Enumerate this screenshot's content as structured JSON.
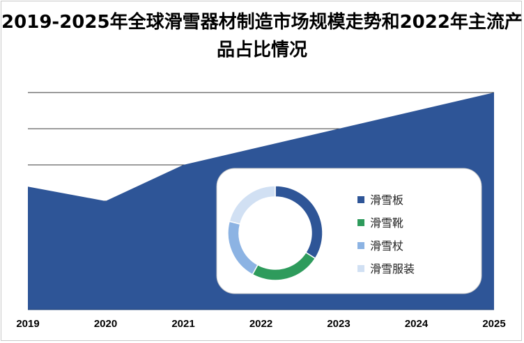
{
  "chart_data": [
    {
      "type": "area",
      "title": "2019-2025年全球滑雪器材制造市场规模走势和2022年主流产品占比情况",
      "categories": [
        "2019",
        "2020",
        "2021",
        "2022",
        "2023",
        "2024",
        "2025"
      ],
      "values": [
        3.4,
        3.0,
        4.0,
        4.5,
        5.0,
        5.5,
        6.0
      ],
      "ylim": [
        0,
        6
      ],
      "ylabel": "",
      "xlabel": "",
      "grid": true,
      "color": "#2e5597"
    },
    {
      "type": "pie",
      "style": "donut",
      "labels": [
        "滑雪板",
        "滑雪靴",
        "滑雪杖",
        "滑雪服装"
      ],
      "values": [
        34,
        24,
        21,
        21
      ],
      "colors": [
        "#2e5597",
        "#2e9b5c",
        "#8cb3e3",
        "#d1e0f3"
      ],
      "legend_position": "right"
    }
  ]
}
